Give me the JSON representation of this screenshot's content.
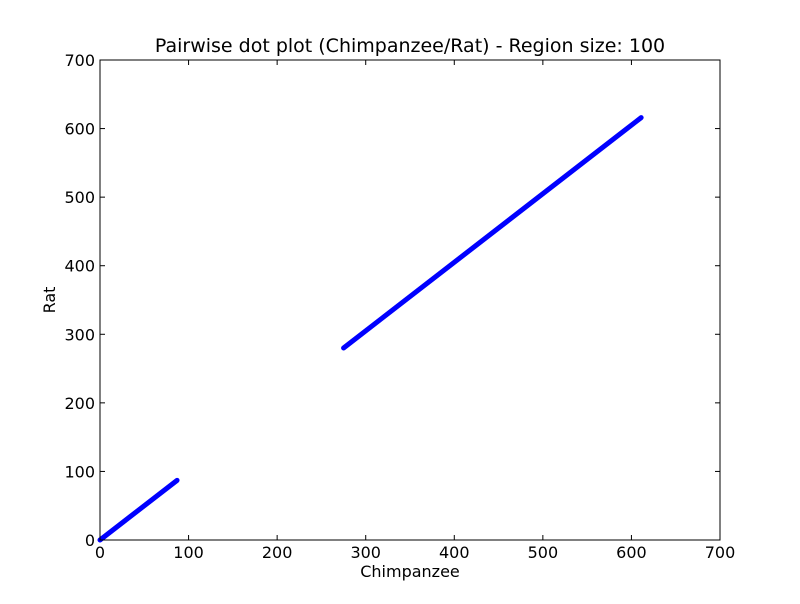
{
  "chart_data": {
    "type": "scatter",
    "title": "Pairwise dot plot (Chimpanzee/Rat) - Region size: 100",
    "xlabel": "Chimpanzee",
    "ylabel": "Rat",
    "xlim": [
      0,
      700
    ],
    "ylim": [
      0,
      700
    ],
    "xticks": [
      "0",
      "100",
      "200",
      "300",
      "400",
      "500",
      "600",
      "700"
    ],
    "yticks": [
      "0",
      "100",
      "200",
      "300",
      "400",
      "500",
      "600",
      "700"
    ],
    "grid": false,
    "legend": "none",
    "series_color": "#0000ff",
    "segments": [
      {
        "x": [
          0,
          87
        ],
        "y": [
          0,
          87
        ]
      },
      {
        "x": [
          275,
          611
        ],
        "y": [
          280,
          616
        ]
      }
    ]
  }
}
